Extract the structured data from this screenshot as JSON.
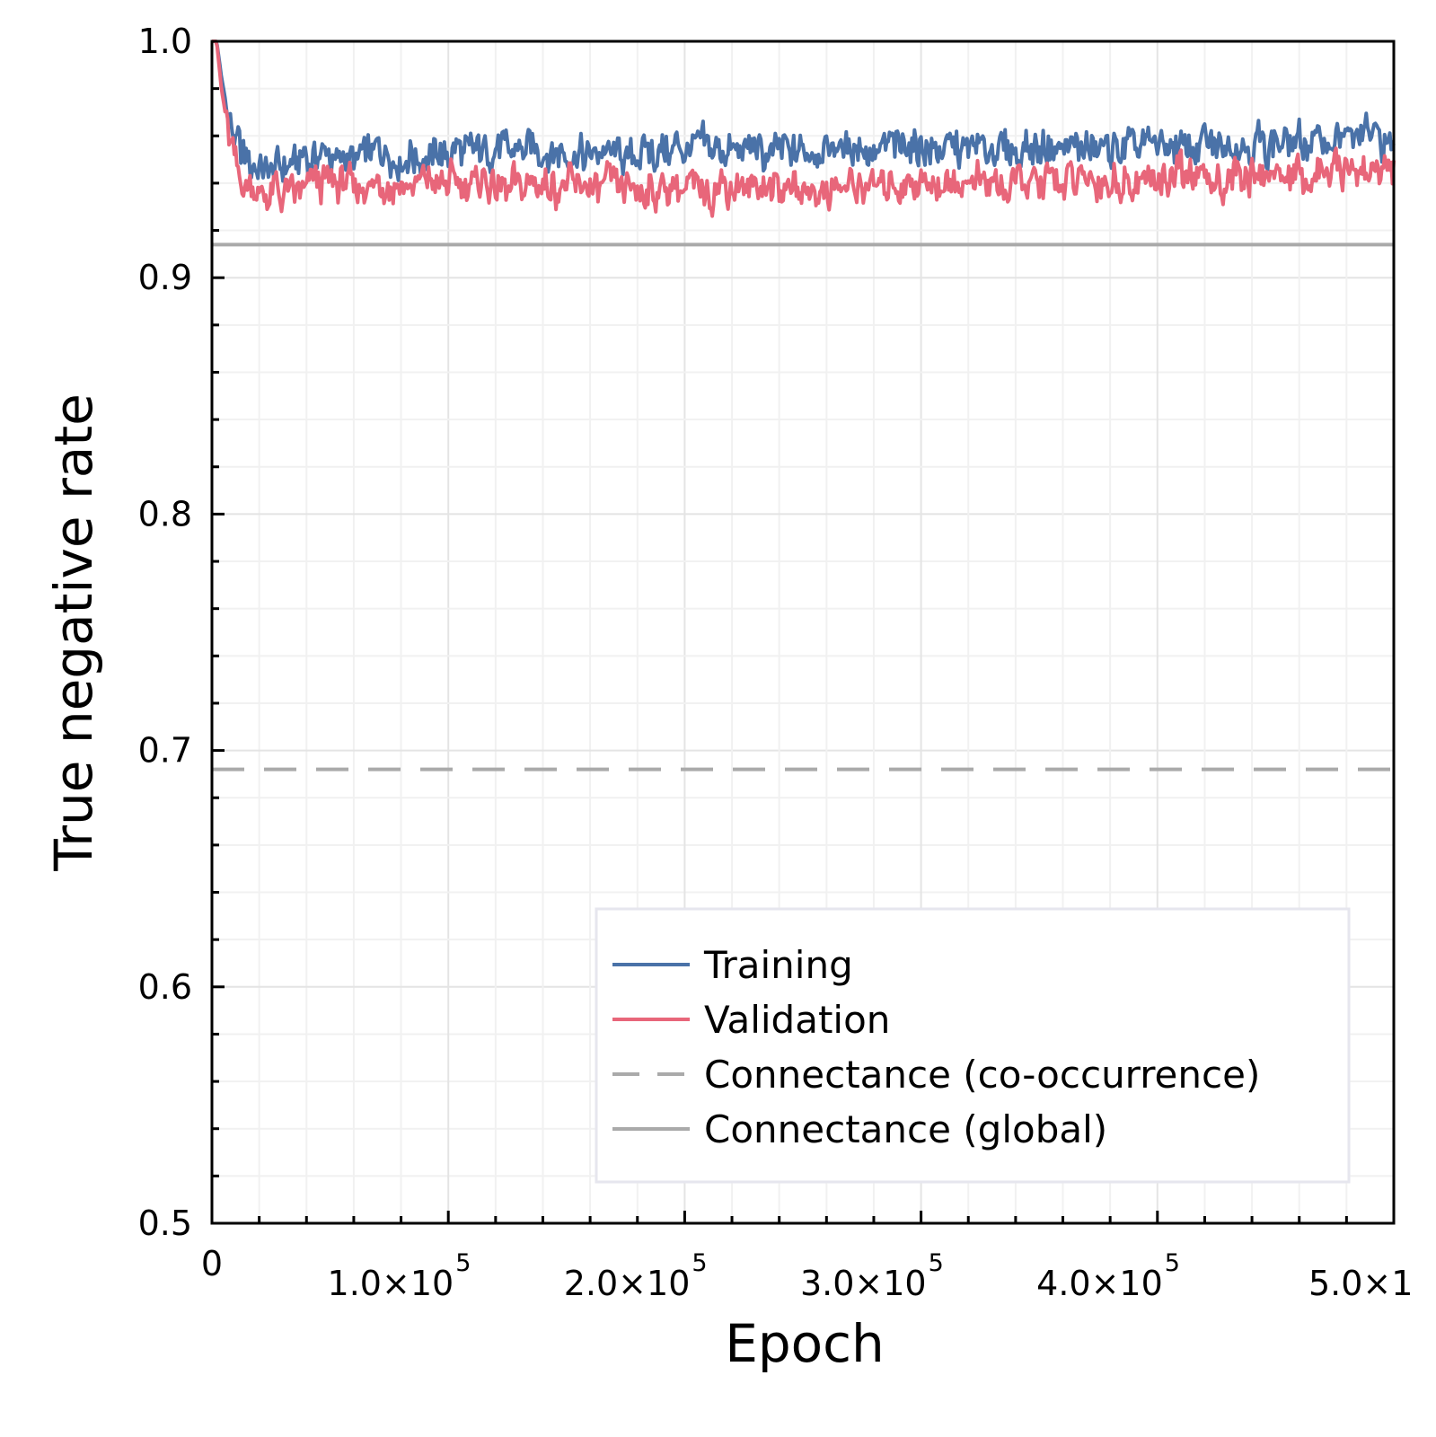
{
  "chart_data": {
    "type": "line",
    "xlabel": "Epoch",
    "ylabel": "True negative rate",
    "xlim": [
      0,
      500000
    ],
    "ylim": [
      0.5,
      1.0
    ],
    "grid": true,
    "legend_position": "bottom-right",
    "x_ticks": [
      {
        "value": 0,
        "label": "0",
        "sup": ""
      },
      {
        "value": 100000,
        "label": "1.0×10",
        "sup": "5"
      },
      {
        "value": 200000,
        "label": "2.0×10",
        "sup": "5"
      },
      {
        "value": 300000,
        "label": "3.0×10",
        "sup": "5"
      },
      {
        "value": 400000,
        "label": "4.0×10",
        "sup": "5"
      },
      {
        "value": 500000,
        "label": "5.0×1",
        "sup": ""
      }
    ],
    "y_ticks": [
      {
        "value": 0.5,
        "label": "0.5"
      },
      {
        "value": 0.6,
        "label": "0.6"
      },
      {
        "value": 0.7,
        "label": "0.7"
      },
      {
        "value": 0.8,
        "label": "0.8"
      },
      {
        "value": 0.9,
        "label": "0.9"
      },
      {
        "value": 1.0,
        "label": "1.0"
      }
    ],
    "series": [
      {
        "name": "Training",
        "color": "#4a72a8",
        "style": "solid",
        "x": [
          0,
          2000,
          4000,
          8000,
          12000,
          16000,
          20000,
          25000,
          30000,
          35000,
          40000,
          50000,
          60000,
          70000,
          80000,
          90000,
          100000,
          120000,
          140000,
          160000,
          180000,
          200000,
          220000,
          240000,
          260000,
          280000,
          300000,
          320000,
          340000,
          360000,
          380000,
          400000,
          420000,
          440000,
          460000,
          470000,
          480000,
          490000,
          500000
        ],
        "y": [
          1.0,
          1.0,
          0.985,
          0.962,
          0.952,
          0.948,
          0.947,
          0.945,
          0.946,
          0.948,
          0.951,
          0.952,
          0.95,
          0.953,
          0.952,
          0.951,
          0.953,
          0.954,
          0.953,
          0.952,
          0.952,
          0.954,
          0.954,
          0.953,
          0.954,
          0.955,
          0.955,
          0.954,
          0.955,
          0.955,
          0.955,
          0.956,
          0.956,
          0.957,
          0.956,
          0.958,
          0.959,
          0.959,
          0.957
        ]
      },
      {
        "name": "Validation",
        "color": "#e8667a",
        "style": "solid",
        "x": [
          0,
          2000,
          4000,
          8000,
          12000,
          16000,
          20000,
          25000,
          30000,
          35000,
          40000,
          50000,
          60000,
          70000,
          80000,
          90000,
          100000,
          120000,
          140000,
          160000,
          180000,
          200000,
          220000,
          240000,
          260000,
          280000,
          300000,
          320000,
          340000,
          360000,
          380000,
          400000,
          420000,
          440000,
          460000,
          470000,
          480000,
          490000,
          500000
        ],
        "y": [
          1.0,
          1.0,
          0.98,
          0.955,
          0.942,
          0.936,
          0.935,
          0.936,
          0.935,
          0.937,
          0.939,
          0.94,
          0.939,
          0.94,
          0.939,
          0.94,
          0.94,
          0.939,
          0.939,
          0.938,
          0.937,
          0.939,
          0.939,
          0.938,
          0.937,
          0.94,
          0.941,
          0.94,
          0.939,
          0.941,
          0.941,
          0.942,
          0.942,
          0.943,
          0.943,
          0.944,
          0.945,
          0.946,
          0.946
        ]
      },
      {
        "name": "Connectance (co-occurrence)",
        "color": "#aaaaaa",
        "style": "dashed",
        "x": [
          0,
          500000
        ],
        "y": [
          0.692,
          0.692
        ]
      },
      {
        "name": "Connectance (global)",
        "color": "#aaaaaa",
        "style": "solid",
        "x": [
          0,
          500000
        ],
        "y": [
          0.914,
          0.914
        ]
      }
    ]
  }
}
